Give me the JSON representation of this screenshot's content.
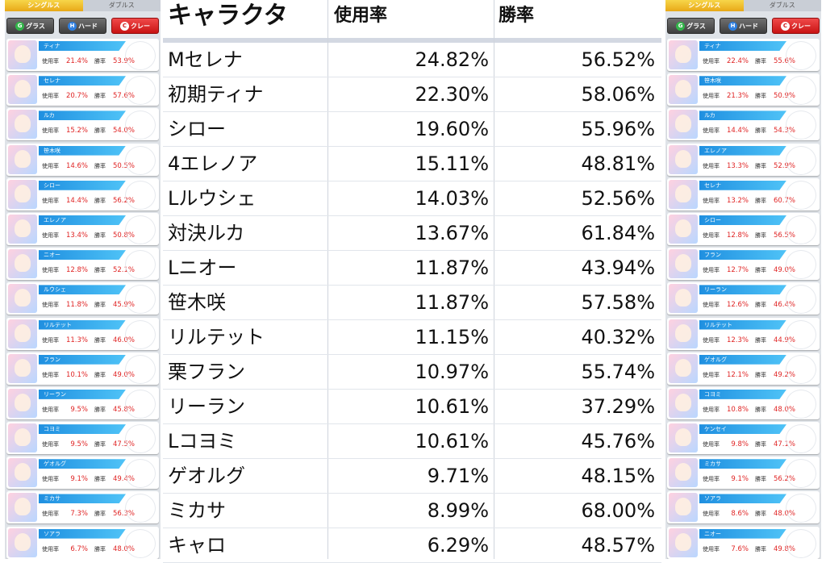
{
  "left_panel": {
    "tabs": [
      "シングルス",
      "ダブルス"
    ],
    "filters": [
      {
        "badge": "G",
        "label": "グラス"
      },
      {
        "badge": "H",
        "label": "ハード"
      },
      {
        "badge": "C",
        "label": "クレー"
      }
    ],
    "stat_labels": {
      "use": "使用率",
      "win": "勝率"
    },
    "cards": [
      {
        "name": "ティナ",
        "use": "21.4%",
        "win": "53.9%"
      },
      {
        "name": "セレナ",
        "use": "20.7%",
        "win": "57.6%"
      },
      {
        "name": "ルカ",
        "use": "15.2%",
        "win": "54.0%"
      },
      {
        "name": "笹木咲",
        "use": "14.6%",
        "win": "50.5%"
      },
      {
        "name": "シロー",
        "use": "14.4%",
        "win": "56.2%"
      },
      {
        "name": "エレノア",
        "use": "13.4%",
        "win": "50.8%"
      },
      {
        "name": "ニオー",
        "use": "12.8%",
        "win": "52.1%"
      },
      {
        "name": "ルウシェ",
        "use": "11.8%",
        "win": "45.9%"
      },
      {
        "name": "リルテット",
        "use": "11.3%",
        "win": "46.0%"
      },
      {
        "name": "フラン",
        "use": "10.1%",
        "win": "49.0%"
      },
      {
        "name": "リーラン",
        "use": "9.5%",
        "win": "45.8%"
      },
      {
        "name": "コヨミ",
        "use": "9.5%",
        "win": "47.5%"
      },
      {
        "name": "ゲオルグ",
        "use": "9.1%",
        "win": "49.4%"
      },
      {
        "name": "ミカサ",
        "use": "7.3%",
        "win": "56.3%"
      },
      {
        "name": "ソアラ",
        "use": "6.7%",
        "win": "48.0%"
      }
    ]
  },
  "right_panel": {
    "tabs": [
      "シングルス",
      "ダブルス"
    ],
    "filters": [
      {
        "badge": "G",
        "label": "グラス"
      },
      {
        "badge": "H",
        "label": "ハード"
      },
      {
        "badge": "C",
        "label": "クレー"
      }
    ],
    "stat_labels": {
      "use": "使用率",
      "win": "勝率"
    },
    "cards": [
      {
        "name": "ティナ",
        "use": "22.4%",
        "win": "55.6%"
      },
      {
        "name": "笹木咲",
        "use": "21.3%",
        "win": "50.9%"
      },
      {
        "name": "ルカ",
        "use": "14.4%",
        "win": "54.3%"
      },
      {
        "name": "エレノア",
        "use": "13.3%",
        "win": "52.9%"
      },
      {
        "name": "セレナ",
        "use": "13.2%",
        "win": "60.7%"
      },
      {
        "name": "シロー",
        "use": "12.8%",
        "win": "56.5%"
      },
      {
        "name": "フラン",
        "use": "12.7%",
        "win": "49.0%"
      },
      {
        "name": "リーラン",
        "use": "12.6%",
        "win": "46.4%"
      },
      {
        "name": "リルテット",
        "use": "12.3%",
        "win": "44.9%"
      },
      {
        "name": "ゲオルグ",
        "use": "12.1%",
        "win": "49.2%"
      },
      {
        "name": "コヨミ",
        "use": "10.8%",
        "win": "48.0%"
      },
      {
        "name": "ケンセイ",
        "use": "9.8%",
        "win": "47.1%"
      },
      {
        "name": "ミカサ",
        "use": "9.1%",
        "win": "56.2%"
      },
      {
        "name": "ソアラ",
        "use": "8.6%",
        "win": "48.0%"
      },
      {
        "name": "ニオー",
        "use": "7.6%",
        "win": "49.8%"
      }
    ]
  },
  "table": {
    "headers": {
      "name": "キャラクタ",
      "use": "使用率",
      "win": "勝率"
    },
    "rows": [
      {
        "name": "Mセレナ",
        "use": "24.82%",
        "win": "56.52%"
      },
      {
        "name": "初期ティナ",
        "use": "22.30%",
        "win": "58.06%"
      },
      {
        "name": "シロー",
        "use": "19.60%",
        "win": "55.96%"
      },
      {
        "name": "4エレノア",
        "use": "15.11%",
        "win": "48.81%"
      },
      {
        "name": "Lルウシェ",
        "use": "14.03%",
        "win": "52.56%"
      },
      {
        "name": "対決ルカ",
        "use": "13.67%",
        "win": "61.84%"
      },
      {
        "name": "Lニオー",
        "use": "11.87%",
        "win": "43.94%"
      },
      {
        "name": "笹木咲",
        "use": "11.87%",
        "win": "57.58%"
      },
      {
        "name": "リルテット",
        "use": "11.15%",
        "win": "40.32%"
      },
      {
        "name": "栗フラン",
        "use": "10.97%",
        "win": "55.74%"
      },
      {
        "name": "リーラン",
        "use": "10.61%",
        "win": "37.29%"
      },
      {
        "name": "Lコヨミ",
        "use": "10.61%",
        "win": "45.76%"
      },
      {
        "name": "ゲオルグ",
        "use": "9.71%",
        "win": "48.15%"
      },
      {
        "name": "ミカサ",
        "use": "8.99%",
        "win": "68.00%"
      },
      {
        "name": "キャロ",
        "use": "6.29%",
        "win": "48.57%"
      }
    ]
  }
}
